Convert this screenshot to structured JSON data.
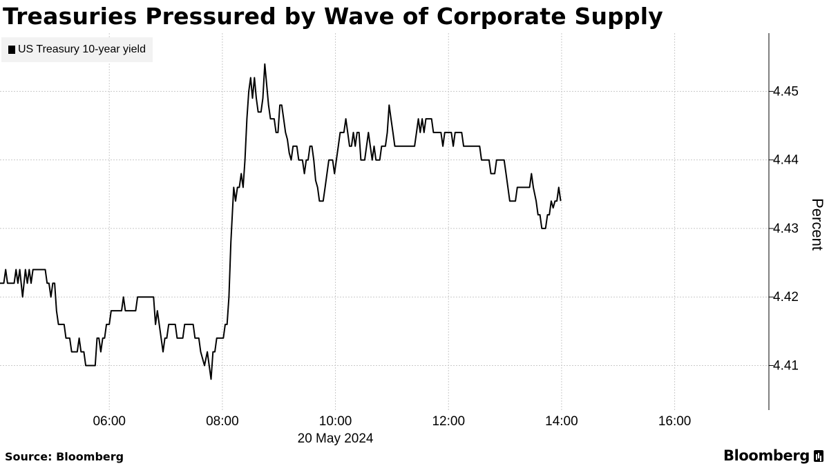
{
  "title": "Treasuries Pressured by Wave of Corporate Supply",
  "legend": {
    "label": "US Treasury 10-year yield"
  },
  "source": "Source: Bloomberg",
  "brand": "Bloomberg",
  "chart_data": {
    "type": "line",
    "title": "Treasuries Pressured by Wave of Corporate Supply",
    "xlabel": "20 May 2024",
    "ylabel": "Percent",
    "x_ticks": [
      "06:00",
      "08:00",
      "10:00",
      "12:00",
      "14:00",
      "16:00"
    ],
    "y_ticks": [
      4.41,
      4.42,
      4.43,
      4.44,
      4.45
    ],
    "xlim": [
      "04:04",
      "17:40"
    ],
    "ylim": [
      4.4035,
      4.4585
    ],
    "grid": true,
    "legend_position": "top-left",
    "series": [
      {
        "name": "US Treasury 10-year yield",
        "color": "#000000",
        "points": [
          [
            "04:04",
            4.422
          ],
          [
            "04:08",
            4.422
          ],
          [
            "04:10",
            4.424
          ],
          [
            "04:12",
            4.422
          ],
          [
            "04:19",
            4.422
          ],
          [
            "04:21",
            4.424
          ],
          [
            "04:23",
            4.422
          ],
          [
            "04:25",
            4.424
          ],
          [
            "04:28",
            4.42
          ],
          [
            "04:31",
            4.424
          ],
          [
            "04:33",
            4.422
          ],
          [
            "04:35",
            4.424
          ],
          [
            "04:37",
            4.422
          ],
          [
            "04:39",
            4.424
          ],
          [
            "04:52",
            4.424
          ],
          [
            "04:54",
            4.422
          ],
          [
            "04:56",
            4.422
          ],
          [
            "04:58",
            4.42
          ],
          [
            "05:00",
            4.422
          ],
          [
            "05:02",
            4.422
          ],
          [
            "05:04",
            4.418
          ],
          [
            "05:06",
            4.416
          ],
          [
            "05:12",
            4.416
          ],
          [
            "05:14",
            4.414
          ],
          [
            "05:18",
            4.414
          ],
          [
            "05:20",
            4.412
          ],
          [
            "05:26",
            4.412
          ],
          [
            "05:28",
            4.414
          ],
          [
            "05:30",
            4.412
          ],
          [
            "05:33",
            4.412
          ],
          [
            "05:35",
            4.41
          ],
          [
            "05:45",
            4.41
          ],
          [
            "05:47",
            4.414
          ],
          [
            "05:49",
            4.414
          ],
          [
            "05:51",
            4.412
          ],
          [
            "05:53",
            4.414
          ],
          [
            "05:55",
            4.414
          ],
          [
            "05:57",
            4.416
          ],
          [
            "06:00",
            4.416
          ],
          [
            "06:02",
            4.418
          ],
          [
            "06:13",
            4.418
          ],
          [
            "06:15",
            4.42
          ],
          [
            "06:17",
            4.418
          ],
          [
            "06:28",
            4.418
          ],
          [
            "06:30",
            4.42
          ],
          [
            "06:47",
            4.42
          ],
          [
            "06:49",
            4.416
          ],
          [
            "06:51",
            4.418
          ],
          [
            "06:53",
            4.416
          ],
          [
            "06:57",
            4.412
          ],
          [
            "06:59",
            4.414
          ],
          [
            "07:01",
            4.414
          ],
          [
            "07:03",
            4.416
          ],
          [
            "07:10",
            4.416
          ],
          [
            "07:12",
            4.414
          ],
          [
            "07:18",
            4.414
          ],
          [
            "07:20",
            4.416
          ],
          [
            "07:29",
            4.416
          ],
          [
            "07:31",
            4.414
          ],
          [
            "07:35",
            4.414
          ],
          [
            "07:37",
            4.412
          ],
          [
            "07:41",
            4.41
          ],
          [
            "07:44",
            4.412
          ],
          [
            "07:46",
            4.41
          ],
          [
            "07:48",
            4.408
          ],
          [
            "07:50",
            4.412
          ],
          [
            "07:52",
            4.412
          ],
          [
            "07:54",
            4.414
          ],
          [
            "08:01",
            4.414
          ],
          [
            "08:03",
            4.416
          ],
          [
            "08:05",
            4.416
          ],
          [
            "08:07",
            4.42
          ],
          [
            "08:09",
            4.428
          ],
          [
            "08:12",
            4.436
          ],
          [
            "08:14",
            4.434
          ],
          [
            "08:16",
            4.436
          ],
          [
            "08:18",
            4.436
          ],
          [
            "08:20",
            4.438
          ],
          [
            "08:22",
            4.436
          ],
          [
            "08:24",
            4.44
          ],
          [
            "08:26",
            4.446
          ],
          [
            "08:28",
            4.45
          ],
          [
            "08:30",
            4.452
          ],
          [
            "08:32",
            4.449
          ],
          [
            "08:34",
            4.452
          ],
          [
            "08:36",
            4.449
          ],
          [
            "08:38",
            4.447
          ],
          [
            "08:41",
            4.447
          ],
          [
            "08:43",
            4.449
          ],
          [
            "08:45",
            4.454
          ],
          [
            "08:47",
            4.451
          ],
          [
            "08:49",
            4.448
          ],
          [
            "08:51",
            4.446
          ],
          [
            "08:55",
            4.446
          ],
          [
            "08:57",
            4.444
          ],
          [
            "08:59",
            4.444
          ],
          [
            "09:01",
            4.448
          ],
          [
            "09:03",
            4.448
          ],
          [
            "09:05",
            4.446
          ],
          [
            "09:07",
            4.444
          ],
          [
            "09:09",
            4.443
          ],
          [
            "09:11",
            4.441
          ],
          [
            "09:13",
            4.44
          ],
          [
            "09:15",
            4.442
          ],
          [
            "09:19",
            4.442
          ],
          [
            "09:21",
            4.44
          ],
          [
            "09:25",
            4.44
          ],
          [
            "09:27",
            4.438
          ],
          [
            "09:29",
            4.44
          ],
          [
            "09:31",
            4.44
          ],
          [
            "09:33",
            4.442
          ],
          [
            "09:35",
            4.442
          ],
          [
            "09:37",
            4.44
          ],
          [
            "09:39",
            4.437
          ],
          [
            "09:41",
            4.436
          ],
          [
            "09:43",
            4.434
          ],
          [
            "09:47",
            4.434
          ],
          [
            "09:49",
            4.436
          ],
          [
            "09:51",
            4.438
          ],
          [
            "09:53",
            4.44
          ],
          [
            "09:57",
            4.44
          ],
          [
            "09:59",
            4.438
          ],
          [
            "10:01",
            4.44
          ],
          [
            "10:03",
            4.442
          ],
          [
            "10:05",
            4.444
          ],
          [
            "10:09",
            4.444
          ],
          [
            "10:11",
            4.446
          ],
          [
            "10:13",
            4.444
          ],
          [
            "10:15",
            4.442
          ],
          [
            "10:17",
            4.442
          ],
          [
            "10:19",
            4.444
          ],
          [
            "10:21",
            4.442
          ],
          [
            "10:23",
            4.444
          ],
          [
            "10:25",
            4.444
          ],
          [
            "10:27",
            4.44
          ],
          [
            "10:31",
            4.44
          ],
          [
            "10:33",
            4.442
          ],
          [
            "10:35",
            4.444
          ],
          [
            "10:37",
            4.442
          ],
          [
            "10:39",
            4.44
          ],
          [
            "10:41",
            4.442
          ],
          [
            "10:43",
            4.44
          ],
          [
            "10:47",
            4.44
          ],
          [
            "10:49",
            4.442
          ],
          [
            "10:53",
            4.442
          ],
          [
            "10:55",
            4.444
          ],
          [
            "10:57",
            4.448
          ],
          [
            "10:59",
            4.446
          ],
          [
            "11:01",
            4.444
          ],
          [
            "11:03",
            4.442
          ],
          [
            "11:24",
            4.442
          ],
          [
            "11:26",
            4.444
          ],
          [
            "11:28",
            4.446
          ],
          [
            "11:30",
            4.444
          ],
          [
            "11:32",
            4.446
          ],
          [
            "11:34",
            4.444
          ],
          [
            "11:36",
            4.446
          ],
          [
            "11:42",
            4.446
          ],
          [
            "11:44",
            4.444
          ],
          [
            "11:52",
            4.444
          ],
          [
            "11:54",
            4.442
          ],
          [
            "11:56",
            4.444
          ],
          [
            "12:03",
            4.444
          ],
          [
            "12:05",
            4.442
          ],
          [
            "12:07",
            4.444
          ],
          [
            "12:14",
            4.444
          ],
          [
            "12:16",
            4.442
          ],
          [
            "12:33",
            4.442
          ],
          [
            "12:35",
            4.44
          ],
          [
            "12:43",
            4.44
          ],
          [
            "12:45",
            4.438
          ],
          [
            "12:49",
            4.438
          ],
          [
            "12:51",
            4.44
          ],
          [
            "12:59",
            4.44
          ],
          [
            "13:01",
            4.438
          ],
          [
            "13:03",
            4.436
          ],
          [
            "13:05",
            4.434
          ],
          [
            "13:11",
            4.434
          ],
          [
            "13:13",
            4.436
          ],
          [
            "13:26",
            4.436
          ],
          [
            "13:28",
            4.438
          ],
          [
            "13:30",
            4.436
          ],
          [
            "13:33",
            4.434
          ],
          [
            "13:35",
            4.432
          ],
          [
            "13:37",
            4.432
          ],
          [
            "13:39",
            4.43
          ],
          [
            "13:43",
            4.43
          ],
          [
            "13:45",
            4.432
          ],
          [
            "13:47",
            4.432
          ],
          [
            "13:49",
            4.434
          ],
          [
            "13:51",
            4.433
          ],
          [
            "13:53",
            4.434
          ],
          [
            "13:55",
            4.434
          ],
          [
            "13:57",
            4.436
          ],
          [
            "13:59",
            4.434
          ]
        ]
      }
    ]
  }
}
